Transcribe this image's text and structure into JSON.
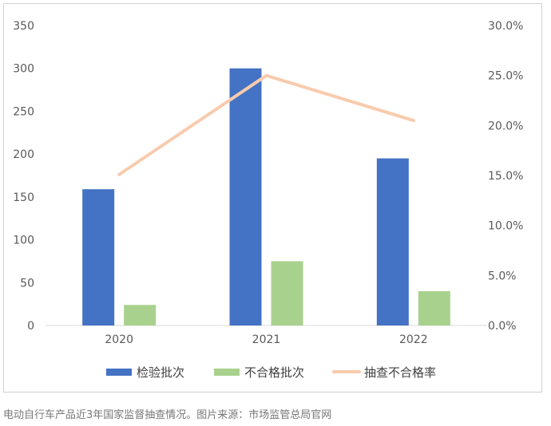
{
  "chart_data": {
    "type": "bar",
    "categories": [
      "2020",
      "2021",
      "2022"
    ],
    "series": [
      {
        "name": "检验批次",
        "kind": "bar",
        "axis": "left",
        "color": "#4472C4",
        "values": [
          159,
          300,
          195
        ]
      },
      {
        "name": "不合格批次",
        "kind": "bar",
        "axis": "left",
        "color": "#A9D18E",
        "values": [
          24,
          75,
          40
        ]
      },
      {
        "name": "抽查不合格率",
        "kind": "line",
        "axis": "right",
        "color": "#F8CBAD",
        "values": [
          0.151,
          0.25,
          0.205
        ]
      }
    ],
    "y_left": {
      "min": 0,
      "max": 350,
      "ticks": [
        "0",
        "50",
        "100",
        "150",
        "200",
        "250",
        "300",
        "350"
      ]
    },
    "y_right": {
      "min": 0,
      "max": 0.3,
      "ticks": [
        "0.0%",
        "5.0%",
        "10.0%",
        "15.0%",
        "20.0%",
        "25.0%",
        "30.0%"
      ]
    },
    "grid": false,
    "legend_position": "bottom"
  },
  "caption": "电动自行车产品近3年国家监督抽查情况。图片来源：市场监管总局官网"
}
